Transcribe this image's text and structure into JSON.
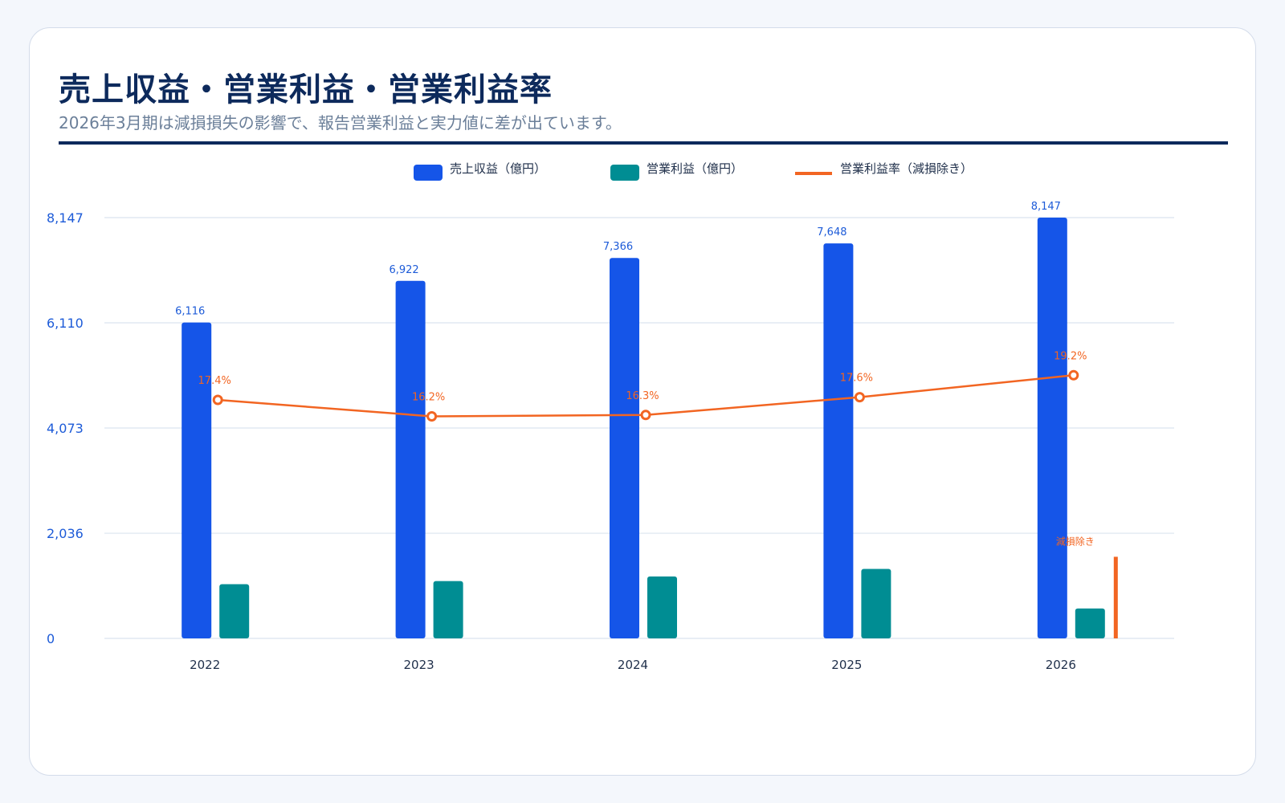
{
  "header": {
    "title": "売上収益・営業利益・営業利益率",
    "subtitle": "2026年3月期は減損損失の影響で、報告営業利益と実力値に差が出ています。"
  },
  "colors": {
    "revenue": "#1555e8",
    "profit": "#008d93",
    "rate": "#f26522",
    "grid": "#dbe4ef",
    "title": "#0d2a5c"
  },
  "chart_data": {
    "type": "bar",
    "title": "売上収益・営業利益・営業利益率",
    "categories": [
      "2022",
      "2023",
      "2024",
      "2025",
      "2026"
    ],
    "series": [
      {
        "name": "売上収益（億円）",
        "kind": "bar",
        "values": [
          6116,
          6922,
          7366,
          7648,
          8147
        ]
      },
      {
        "name": "営業利益（億円）",
        "kind": "bar",
        "values": [
          1050,
          1110,
          1200,
          1345,
          580
        ]
      },
      {
        "name": "営業利益率（減損除き）",
        "kind": "line",
        "unit": "%",
        "values": [
          17.4,
          16.2,
          16.3,
          17.6,
          19.2
        ]
      }
    ],
    "bar_labels": [
      "6,116",
      "6,922",
      "7,366",
      "7,648",
      "8,147"
    ],
    "rate_labels": [
      "17.4%",
      "16.2%",
      "16.3%",
      "17.6%",
      "19.2%"
    ],
    "y_ticks": [
      0,
      2036,
      4073,
      6110,
      8147
    ],
    "y_tick_labels": [
      "0",
      "2,036",
      "4,073",
      "6,110",
      "8,147"
    ],
    "ylim": [
      0,
      8147
    ],
    "rate_axis_range": [
      0,
      30.7
    ],
    "grid": true,
    "legend_position": "top-center",
    "annotation": {
      "category": "2026",
      "text": "減損除き",
      "value": 1580
    }
  }
}
